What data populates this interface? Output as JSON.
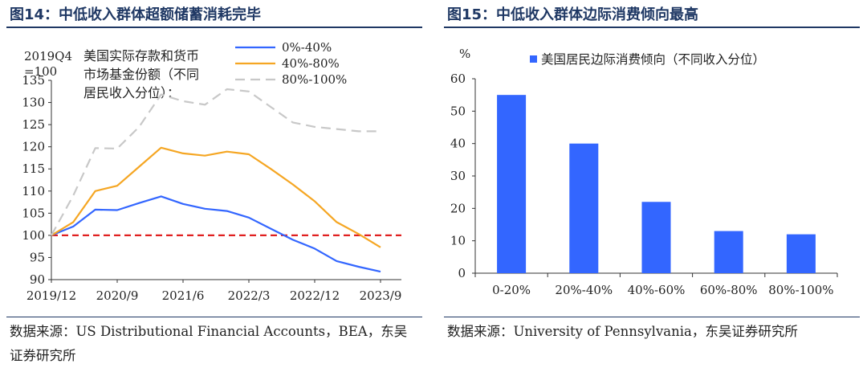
{
  "left_panel": {
    "title": "图14：中低收入群体超额储蓄消耗完毕",
    "source": "数据来源：US Distributional Financial Accounts，BEA，东吴证券研究所"
  },
  "right_panel": {
    "title": "图15：中低收入群体边际消费倾向最高",
    "source": "数据来源：University of Pennsylvania，东吴证券研究所"
  },
  "chart_data": [
    {
      "type": "line",
      "title": "",
      "ylabel_lines": [
        "2019Q4",
        "=100"
      ],
      "annotation_lines": [
        "美国实际存款和货币",
        "市场基金份额（不同",
        "居民收入分位）："
      ],
      "ylim": [
        90,
        135
      ],
      "yticks": [
        90,
        95,
        100,
        105,
        110,
        115,
        120,
        125,
        130,
        135
      ],
      "xticks": [
        "2019/12",
        "2020/9",
        "2021/6",
        "2022/3",
        "2022/12",
        "2023/9"
      ],
      "x": [
        "2019Q4",
        "2020Q1",
        "2020Q2",
        "2020Q3",
        "2020Q4",
        "2021Q1",
        "2021Q2",
        "2021Q3",
        "2021Q4",
        "2022Q1",
        "2022Q2",
        "2022Q3",
        "2022Q4",
        "2023Q1",
        "2023Q2",
        "2023Q3"
      ],
      "reference_line": 100,
      "series": [
        {
          "name": "0%-40%",
          "color": "#3366ff",
          "style": "solid",
          "values": [
            100,
            102,
            105.8,
            105.7,
            107.3,
            108.8,
            107.1,
            106,
            105.5,
            104,
            101.5,
            99,
            97,
            94.2,
            92.9,
            91.8
          ]
        },
        {
          "name": "40%-80%",
          "color": "#f5a623",
          "style": "solid",
          "values": [
            100,
            103,
            110,
            111.2,
            115.5,
            119.8,
            118.5,
            118,
            118.9,
            118.3,
            115,
            111.5,
            107.7,
            103,
            100.3,
            97.3
          ]
        },
        {
          "name": "80%-100%",
          "color": "#c8c8c8",
          "style": "dashed",
          "values": [
            100,
            109,
            119.7,
            119.6,
            124.5,
            131.8,
            130.3,
            129.5,
            133,
            132.5,
            129,
            125.5,
            124.5,
            124,
            123.5,
            123.5
          ]
        }
      ]
    },
    {
      "type": "bar",
      "title": "",
      "ylabel": "%",
      "ylim": [
        0,
        60
      ],
      "yticks": [
        0,
        10,
        20,
        30,
        40,
        50,
        60
      ],
      "categories": [
        "0-20%",
        "20%-40%",
        "40%-60%",
        "60%-80%",
        "80%-100%"
      ],
      "series": [
        {
          "name": "美国居民边际消费倾向（不同收入分位）",
          "color": "#3366ff",
          "values": [
            55,
            40,
            22,
            13,
            12
          ]
        }
      ]
    }
  ]
}
